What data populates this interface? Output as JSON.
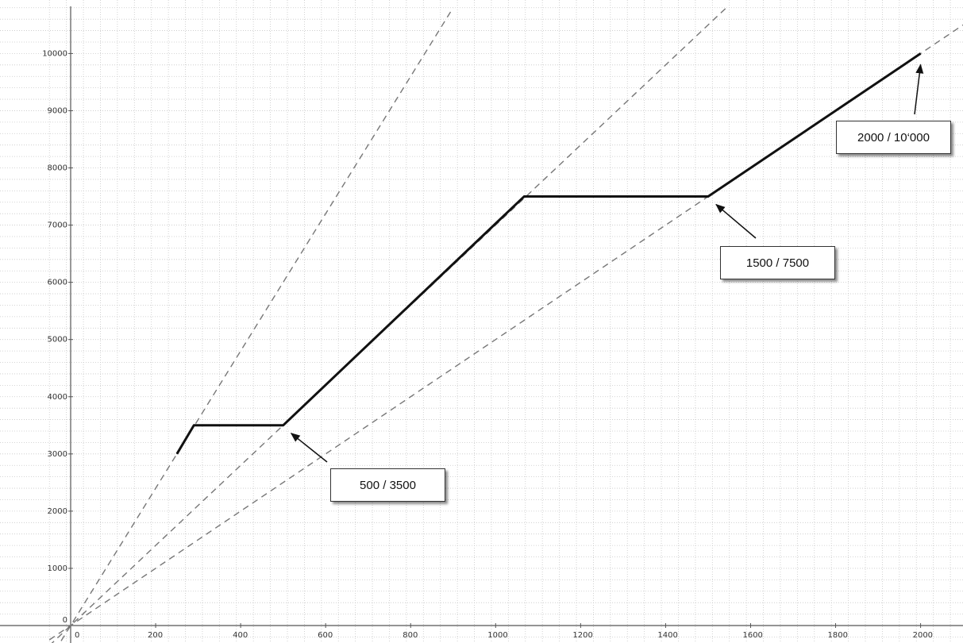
{
  "chart_data": {
    "type": "line",
    "xlim": [
      -50,
      2100
    ],
    "ylim": [
      -250,
      10800
    ],
    "x_ticks": [
      0,
      200,
      400,
      600,
      800,
      1000,
      1200,
      1400,
      1600,
      1800,
      2000
    ],
    "y_ticks": [
      0,
      1000,
      2000,
      3000,
      4000,
      5000,
      6000,
      7000,
      8000,
      9000,
      10000
    ],
    "grid": true,
    "series": [
      {
        "style": "solid",
        "color": "#111111",
        "points": [
          [
            250,
            3000
          ],
          [
            290,
            3500
          ],
          [
            500,
            3500
          ],
          [
            1067,
            7500
          ],
          [
            1500,
            7500
          ],
          [
            2000,
            10000
          ]
        ]
      }
    ],
    "reference_lines": [
      {
        "style": "dashed",
        "color": "#777777",
        "slope": 12
      },
      {
        "style": "dashed",
        "color": "#777777",
        "slope": 7
      },
      {
        "style": "dashed",
        "color": "#777777",
        "slope": 5
      }
    ],
    "annotations": [
      {
        "text": "500 / 3500",
        "x": 500,
        "y": 3500
      },
      {
        "text": "1500 / 7500",
        "x": 1500,
        "y": 7500
      },
      {
        "text": "2000 / 10‘000",
        "x": 2000,
        "y": 10000
      }
    ]
  }
}
